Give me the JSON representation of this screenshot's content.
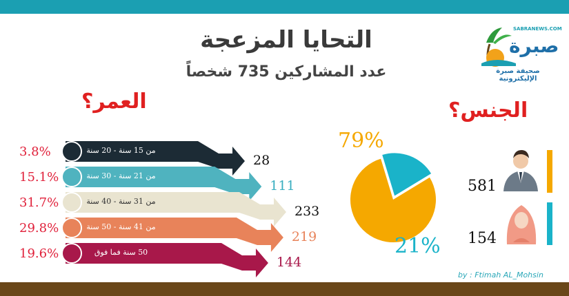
{
  "header": {
    "title": "التحايا المزعجة",
    "subtitle": "عدد المشاركين 735 شخصاً"
  },
  "logo": {
    "site": "SABRANEWS.COM",
    "name": "صبرة",
    "tagline": "صحيفة صبرة الإليكترونية"
  },
  "credit": "by : Ftimah AL_Mohsin",
  "chart_data": [
    {
      "type": "bar",
      "title": "العمر؟",
      "categories": [
        "من 15 سنة - 20 سنة",
        "من 21 سنة - 30 سنة",
        "من 31 سنة - 40 سنة",
        "من 41 سنة - 50 سنة",
        "50 سنة فما فوق"
      ],
      "values": [
        28,
        111,
        233,
        219,
        144
      ],
      "percent_labels": [
        "3.8%",
        "15.1%",
        "31.7%",
        "29.8%",
        "19.6%"
      ],
      "colors": [
        "#1c2b35",
        "#4fb3bf",
        "#e9e4d0",
        "#e8835a",
        "#a8184a"
      ],
      "value_colors": [
        "#111111",
        "#3aaec0",
        "#111111",
        "#e8835a",
        "#a8184a"
      ]
    },
    {
      "type": "pie",
      "title": "الجنس؟",
      "categories": [
        "male",
        "female"
      ],
      "values": [
        581,
        154
      ],
      "percent_labels": [
        "79%",
        "21%"
      ],
      "colors": [
        "#f5a800",
        "#1ab3c9"
      ]
    }
  ],
  "icons": {
    "male": "male-person-icon",
    "female": "female-hijab-icon"
  }
}
